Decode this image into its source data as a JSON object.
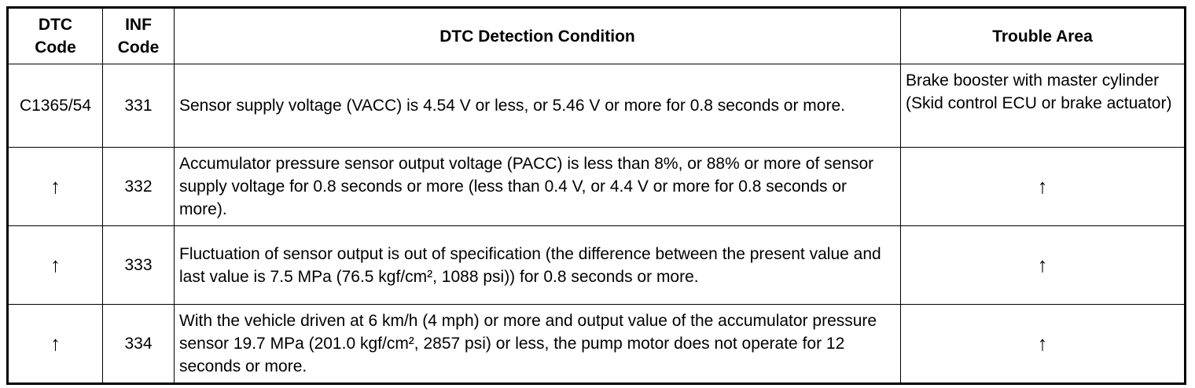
{
  "table": {
    "header": [
      "DTC Code",
      "INF Code",
      "DTC Detection Condition",
      "Trouble Area"
    ],
    "rows": [
      [
        "C1365/54",
        "331",
        "Sensor supply voltage (VACC) is 4.54 V or less, or 5.46 V or more for 0.8 seconds or more.",
        "Brake booster with master cylinder (Skid control ECU or brake actuator)"
      ],
      [
        "↑",
        "332",
        "Accumulator pressure sensor output voltage (PACC) is less than 8%, or 88% or more of sensor supply voltage for 0.8 seconds or more (less than 0.4 V, or 4.4 V or more for 0.8 seconds or more).",
        "↑"
      ],
      [
        "↑",
        "333",
        "Fluctuation of sensor output is out of specification (the difference between the present value and last value is 7.5 MPa (76.5 kgf/cm², 1088 psi)) for 0.8 seconds or more.",
        "↑"
      ],
      [
        "↑",
        "334",
        "With the vehicle driven at 6 km/h (4 mph) or more and output value of the accumulator pressure sensor 19.7 MPa (201.0 kgf/cm², 2857 psi) or less, the pump motor does not operate for 12 seconds or more.",
        "↑"
      ]
    ]
  }
}
